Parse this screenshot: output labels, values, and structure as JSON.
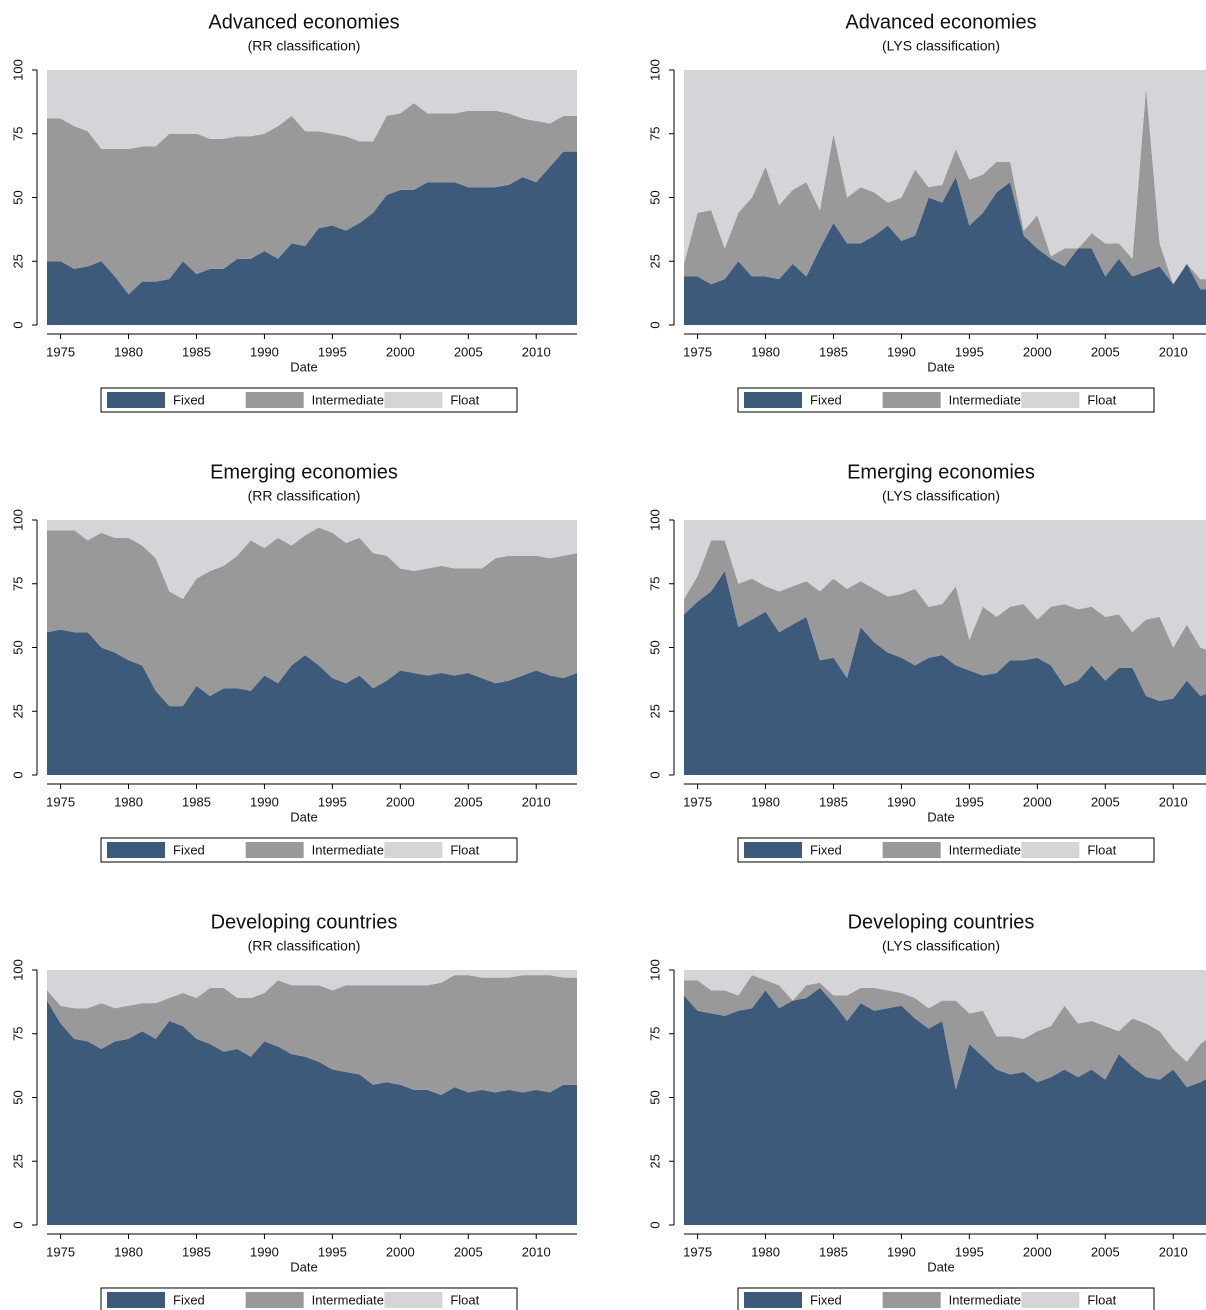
{
  "chart_data": [
    {
      "type": "area",
      "title": "Advanced economies",
      "subtitle": "(RR classification)",
      "xlabel": "Date",
      "x": [
        1974,
        1975,
        1976,
        1977,
        1978,
        1979,
        1980,
        1981,
        1982,
        1983,
        1984,
        1985,
        1986,
        1987,
        1988,
        1989,
        1990,
        1991,
        1992,
        1993,
        1994,
        1995,
        1996,
        1997,
        1998,
        1999,
        2000,
        2001,
        2002,
        2003,
        2004,
        2005,
        2006,
        2007,
        2008,
        2009,
        2010,
        2011,
        2012,
        2013
      ],
      "series": [
        {
          "name": "Fixed",
          "color": "#3d5a7a",
          "values": [
            25,
            25,
            22,
            23,
            25,
            19,
            12,
            17,
            17,
            18,
            25,
            20,
            22,
            22,
            26,
            26,
            29,
            26,
            32,
            31,
            38,
            39,
            37,
            40,
            44,
            51,
            53,
            53,
            56,
            56,
            56,
            54,
            54,
            54,
            55,
            58,
            56,
            62,
            68,
            68
          ]
        },
        {
          "name": "Intermediate",
          "color": "#999999",
          "values": [
            56,
            56,
            56,
            53,
            44,
            50,
            57,
            53,
            53,
            57,
            50,
            55,
            51,
            51,
            48,
            48,
            46,
            52,
            50,
            45,
            38,
            36,
            37,
            32,
            28,
            31,
            30,
            34,
            27,
            27,
            27,
            30,
            30,
            30,
            28,
            23,
            24,
            17,
            14,
            14
          ]
        },
        {
          "name": "Float",
          "color": "#d5d4d8",
          "values": [
            19,
            19,
            22,
            24,
            31,
            31,
            31,
            30,
            30,
            25,
            25,
            25,
            27,
            27,
            26,
            26,
            25,
            22,
            18,
            24,
            24,
            25,
            26,
            28,
            28,
            18,
            17,
            13,
            17,
            17,
            17,
            16,
            16,
            16,
            17,
            19,
            20,
            21,
            18,
            18
          ]
        }
      ],
      "xlim": [
        1974,
        2013
      ],
      "ylim": [
        0,
        100
      ],
      "xticks": [
        1975,
        1980,
        1985,
        1990,
        1995,
        2000,
        2005,
        2010
      ],
      "yticks": [
        0,
        25,
        50,
        75,
        100
      ]
    },
    {
      "type": "area",
      "title": "Advanced economies",
      "subtitle": "(LYS classification)",
      "xlabel": "Date",
      "x": [
        1974,
        1975,
        1976,
        1977,
        1978,
        1979,
        1980,
        1981,
        1982,
        1983,
        1984,
        1985,
        1986,
        1987,
        1988,
        1989,
        1990,
        1991,
        1992,
        1993,
        1994,
        1995,
        1996,
        1997,
        1998,
        1999,
        2000,
        2001,
        2002,
        2003,
        2004,
        2005,
        2006,
        2007,
        2008,
        2009,
        2010,
        2011,
        2012,
        2013
      ],
      "series": [
        {
          "name": "Fixed",
          "color": "#3d5a7a",
          "values": [
            19,
            19,
            16,
            18,
            25,
            19,
            19,
            18,
            24,
            19,
            30,
            40,
            32,
            32,
            35,
            39,
            33,
            35,
            50,
            48,
            58,
            39,
            44,
            52,
            56,
            35,
            30,
            26,
            23,
            30,
            30,
            19,
            26,
            19,
            21,
            23,
            16,
            24,
            14,
            14
          ]
        },
        {
          "name": "Intermediate",
          "color": "#999999",
          "values": [
            5,
            25,
            29,
            12,
            19,
            31,
            43,
            29,
            29,
            37,
            15,
            35,
            18,
            22,
            17,
            9,
            17,
            26,
            4,
            7,
            11,
            18,
            15,
            12,
            8,
            2,
            13,
            1,
            7,
            0,
            6,
            13,
            6,
            7,
            72,
            9,
            0,
            0,
            4,
            4
          ]
        },
        {
          "name": "Float",
          "color": "#d5d4d8",
          "values": [
            76,
            56,
            55,
            70,
            56,
            50,
            38,
            53,
            47,
            44,
            55,
            25,
            50,
            46,
            48,
            52,
            50,
            39,
            46,
            45,
            31,
            43,
            41,
            36,
            36,
            63,
            57,
            73,
            70,
            70,
            64,
            68,
            68,
            74,
            7,
            68,
            84,
            76,
            82,
            82
          ]
        }
      ],
      "xlim": [
        1974,
        2013
      ],
      "ylim": [
        0,
        100
      ],
      "xticks": [
        1975,
        1980,
        1985,
        1990,
        1995,
        2000,
        2005,
        2010
      ],
      "yticks": [
        0,
        25,
        50,
        75,
        100
      ]
    },
    {
      "type": "area",
      "title": "Emerging economies",
      "subtitle": "(RR classification)",
      "xlabel": "Date",
      "x": [
        1974,
        1975,
        1976,
        1977,
        1978,
        1979,
        1980,
        1981,
        1982,
        1983,
        1984,
        1985,
        1986,
        1987,
        1988,
        1989,
        1990,
        1991,
        1992,
        1993,
        1994,
        1995,
        1996,
        1997,
        1998,
        1999,
        2000,
        2001,
        2002,
        2003,
        2004,
        2005,
        2006,
        2007,
        2008,
        2009,
        2010,
        2011,
        2012,
        2013
      ],
      "series": [
        {
          "name": "Fixed",
          "color": "#3d5a7a",
          "values": [
            56,
            57,
            56,
            56,
            50,
            48,
            45,
            43,
            33,
            27,
            27,
            35,
            31,
            34,
            34,
            33,
            39,
            36,
            43,
            47,
            43,
            38,
            36,
            39,
            34,
            37,
            41,
            40,
            39,
            40,
            39,
            40,
            38,
            36,
            37,
            39,
            41,
            39,
            38,
            40
          ]
        },
        {
          "name": "Intermediate",
          "color": "#999999",
          "values": [
            40,
            39,
            40,
            36,
            45,
            45,
            48,
            47,
            52,
            45,
            42,
            42,
            49,
            48,
            52,
            59,
            50,
            57,
            47,
            47,
            54,
            57,
            55,
            54,
            53,
            49,
            40,
            40,
            42,
            42,
            42,
            41,
            43,
            49,
            49,
            47,
            45,
            46,
            48,
            47
          ]
        },
        {
          "name": "Float",
          "color": "#d5d4d8",
          "values": [
            4,
            4,
            4,
            8,
            5,
            7,
            7,
            10,
            15,
            28,
            31,
            23,
            20,
            18,
            14,
            8,
            11,
            7,
            10,
            6,
            3,
            5,
            9,
            7,
            13,
            14,
            19,
            20,
            19,
            18,
            19,
            19,
            19,
            15,
            14,
            14,
            14,
            15,
            14,
            13
          ]
        }
      ],
      "xlim": [
        1974,
        2013
      ],
      "ylim": [
        0,
        100
      ],
      "xticks": [
        1975,
        1980,
        1985,
        1990,
        1995,
        2000,
        2005,
        2010
      ],
      "yticks": [
        0,
        25,
        50,
        75,
        100
      ]
    },
    {
      "type": "area",
      "title": "Emerging economies",
      "subtitle": "(LYS classification)",
      "xlabel": "Date",
      "x": [
        1974,
        1975,
        1976,
        1977,
        1978,
        1979,
        1980,
        1981,
        1982,
        1983,
        1984,
        1985,
        1986,
        1987,
        1988,
        1989,
        1990,
        1991,
        1992,
        1993,
        1994,
        1995,
        1996,
        1997,
        1998,
        1999,
        2000,
        2001,
        2002,
        2003,
        2004,
        2005,
        2006,
        2007,
        2008,
        2009,
        2010,
        2011,
        2012,
        2013
      ],
      "series": [
        {
          "name": "Fixed",
          "color": "#3d5a7a",
          "values": [
            63,
            68,
            72,
            80,
            58,
            61,
            64,
            56,
            59,
            62,
            45,
            46,
            38,
            58,
            52,
            48,
            46,
            43,
            46,
            47,
            43,
            41,
            39,
            40,
            45,
            45,
            46,
            43,
            35,
            37,
            43,
            37,
            42,
            42,
            31,
            29,
            30,
            37,
            31,
            33
          ]
        },
        {
          "name": "Intermediate",
          "color": "#999999",
          "values": [
            6,
            10,
            20,
            12,
            17,
            16,
            10,
            16,
            15,
            14,
            27,
            31,
            35,
            18,
            21,
            22,
            25,
            30,
            20,
            20,
            31,
            12,
            27,
            22,
            21,
            22,
            15,
            23,
            32,
            28,
            23,
            25,
            21,
            14,
            30,
            33,
            20,
            22,
            19,
            15
          ]
        },
        {
          "name": "Float",
          "color": "#d5d4d8",
          "values": [
            31,
            22,
            8,
            8,
            25,
            23,
            26,
            28,
            26,
            24,
            28,
            23,
            27,
            24,
            27,
            30,
            29,
            27,
            34,
            33,
            26,
            47,
            34,
            38,
            34,
            33,
            39,
            34,
            33,
            35,
            34,
            38,
            37,
            44,
            39,
            38,
            50,
            41,
            50,
            52
          ]
        }
      ],
      "xlim": [
        1974,
        2013
      ],
      "ylim": [
        0,
        100
      ],
      "xticks": [
        1975,
        1980,
        1985,
        1990,
        1995,
        2000,
        2005,
        2010
      ],
      "yticks": [
        0,
        25,
        50,
        75,
        100
      ]
    },
    {
      "type": "area",
      "title": "Developing countries",
      "subtitle": "(RR classification)",
      "xlabel": "Date",
      "x": [
        1974,
        1975,
        1976,
        1977,
        1978,
        1979,
        1980,
        1981,
        1982,
        1983,
        1984,
        1985,
        1986,
        1987,
        1988,
        1989,
        1990,
        1991,
        1992,
        1993,
        1994,
        1995,
        1996,
        1997,
        1998,
        1999,
        2000,
        2001,
        2002,
        2003,
        2004,
        2005,
        2006,
        2007,
        2008,
        2009,
        2010,
        2011,
        2012,
        2013
      ],
      "series": [
        {
          "name": "Fixed",
          "color": "#3d5a7a",
          "values": [
            88,
            79,
            73,
            72,
            69,
            72,
            73,
            76,
            73,
            80,
            78,
            73,
            71,
            68,
            69,
            66,
            72,
            70,
            67,
            66,
            64,
            61,
            60,
            59,
            55,
            56,
            55,
            53,
            53,
            51,
            54,
            52,
            53,
            52,
            53,
            52,
            53,
            52,
            55,
            55
          ]
        },
        {
          "name": "Intermediate",
          "color": "#999999",
          "values": [
            4,
            7,
            12,
            13,
            18,
            13,
            13,
            11,
            14,
            9,
            13,
            16,
            22,
            25,
            20,
            23,
            19,
            26,
            27,
            28,
            30,
            31,
            34,
            35,
            39,
            38,
            39,
            41,
            41,
            44,
            44,
            46,
            44,
            45,
            44,
            46,
            45,
            46,
            42,
            42
          ]
        },
        {
          "name": "Float",
          "color": "#d5d4d8",
          "values": [
            8,
            14,
            15,
            15,
            13,
            15,
            14,
            13,
            13,
            11,
            9,
            11,
            7,
            7,
            11,
            11,
            9,
            4,
            6,
            6,
            6,
            8,
            6,
            6,
            6,
            6,
            6,
            6,
            6,
            5,
            2,
            2,
            3,
            3,
            3,
            2,
            2,
            2,
            3,
            3
          ]
        }
      ],
      "xlim": [
        1974,
        2013
      ],
      "ylim": [
        0,
        100
      ],
      "xticks": [
        1975,
        1980,
        1985,
        1990,
        1995,
        2000,
        2005,
        2010
      ],
      "yticks": [
        0,
        25,
        50,
        75,
        100
      ]
    },
    {
      "type": "area",
      "title": "Developing countries",
      "subtitle": "(LYS classification)",
      "xlabel": "Date",
      "x": [
        1974,
        1975,
        1976,
        1977,
        1978,
        1979,
        1980,
        1981,
        1982,
        1983,
        1984,
        1985,
        1986,
        1987,
        1988,
        1989,
        1990,
        1991,
        1992,
        1993,
        1994,
        1995,
        1996,
        1997,
        1998,
        1999,
        2000,
        2001,
        2002,
        2003,
        2004,
        2005,
        2006,
        2007,
        2008,
        2009,
        2010,
        2011,
        2012,
        2013
      ],
      "series": [
        {
          "name": "Fixed",
          "color": "#3d5a7a",
          "values": [
            90,
            84,
            83,
            82,
            84,
            85,
            92,
            85,
            88,
            89,
            93,
            87,
            80,
            87,
            84,
            85,
            86,
            81,
            77,
            80,
            53,
            71,
            66,
            61,
            59,
            60,
            56,
            58,
            61,
            58,
            61,
            57,
            67,
            62,
            58,
            57,
            61,
            54,
            56,
            59
          ]
        },
        {
          "name": "Intermediate",
          "color": "#999999",
          "values": [
            6,
            12,
            9,
            10,
            6,
            13,
            4,
            9,
            0,
            5,
            2,
            3,
            10,
            6,
            9,
            7,
            5,
            8,
            8,
            8,
            35,
            12,
            18,
            13,
            15,
            13,
            20,
            20,
            25,
            21,
            19,
            21,
            9,
            19,
            21,
            19,
            8,
            10,
            15,
            16
          ]
        },
        {
          "name": "Float",
          "color": "#d5d4d8",
          "values": [
            4,
            4,
            8,
            8,
            10,
            2,
            4,
            6,
            12,
            6,
            5,
            10,
            10,
            7,
            7,
            8,
            9,
            11,
            15,
            12,
            12,
            17,
            16,
            26,
            26,
            27,
            24,
            22,
            14,
            21,
            20,
            22,
            24,
            19,
            21,
            24,
            31,
            36,
            29,
            25
          ]
        }
      ],
      "xlim": [
        1974,
        2013
      ],
      "ylim": [
        0,
        100
      ],
      "xticks": [
        1975,
        1980,
        1985,
        1990,
        1995,
        2000,
        2005,
        2010
      ],
      "yticks": [
        0,
        25,
        50,
        75,
        100
      ]
    }
  ]
}
